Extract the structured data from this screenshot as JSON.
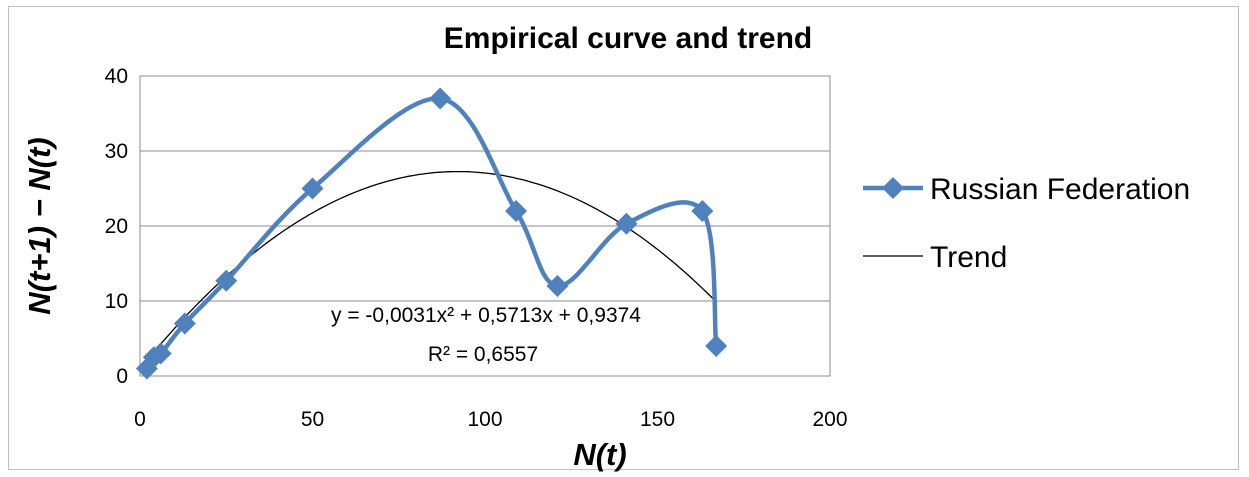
{
  "chart_data": {
    "type": "scatter",
    "title": "Empirical curve and trend",
    "xlabel": "N(t)",
    "ylabel": "N(t+1) − N(t)",
    "xlim": [
      0,
      200
    ],
    "ylim": [
      0,
      40
    ],
    "x_ticks": [
      "0",
      "50",
      "100",
      "150",
      "200"
    ],
    "y_ticks": [
      "0",
      "10",
      "20",
      "30",
      "40"
    ],
    "grid": "horizontal major gridlines",
    "legend_position": "right",
    "series": [
      {
        "name": "Russian Federation",
        "style": "smoothed line with diamond markers",
        "color": "#4f81bd",
        "points": [
          [
            2,
            1
          ],
          [
            4,
            2.5
          ],
          [
            6,
            3
          ],
          [
            13,
            7
          ],
          [
            25,
            12.7
          ],
          [
            50,
            25
          ],
          [
            87,
            37
          ],
          [
            109,
            22
          ],
          [
            121,
            12
          ],
          [
            141,
            20.3
          ],
          [
            163,
            22
          ],
          [
            167,
            4
          ]
        ]
      },
      {
        "name": "Trend",
        "style": "thin line",
        "color": "#000000",
        "fit": "polynomial order 2",
        "coefficients": {
          "a": -0.0031,
          "b": 0.5713,
          "c": 0.9374
        },
        "x_range": [
          2,
          167
        ]
      }
    ],
    "annotation": {
      "equation": "y = -0,0031x² + 0,5713x + 0,9374",
      "r_squared": "R² = 0,6557"
    }
  }
}
